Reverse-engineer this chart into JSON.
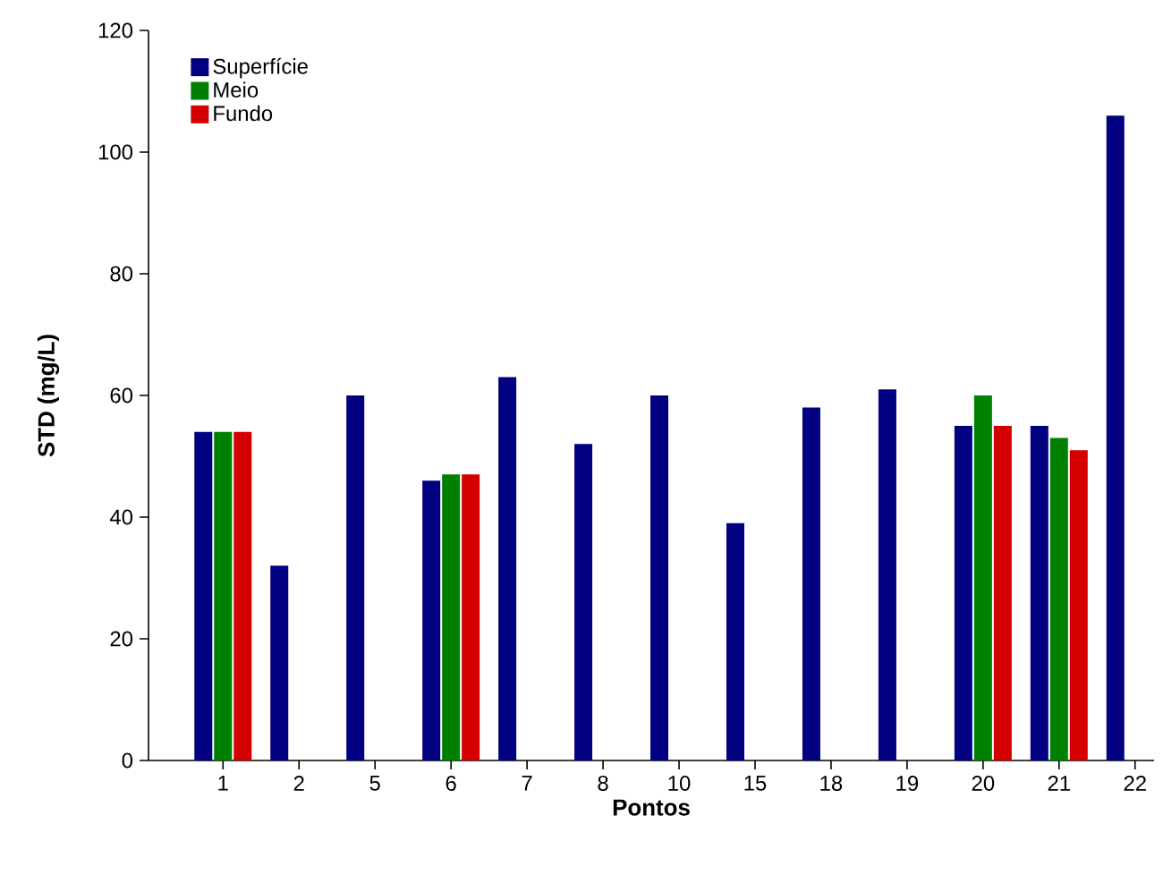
{
  "chart_data": {
    "type": "bar",
    "xlabel": "Pontos",
    "ylabel": "STD (mg/L)",
    "categories": [
      "1",
      "2",
      "5",
      "6",
      "7",
      "8",
      "10",
      "15",
      "18",
      "19",
      "20",
      "21",
      "22"
    ],
    "series": [
      {
        "name": "Superfície",
        "color": "#000080",
        "values": [
          54,
          32,
          60,
          46,
          63,
          52,
          60,
          39,
          58,
          61,
          55,
          55,
          106
        ]
      },
      {
        "name": "Meio",
        "color": "#008000",
        "values": [
          54,
          null,
          null,
          47,
          null,
          null,
          null,
          null,
          null,
          null,
          60,
          53,
          null
        ]
      },
      {
        "name": "Fundo",
        "color": "#d40000",
        "values": [
          54,
          null,
          null,
          47,
          null,
          null,
          null,
          null,
          null,
          null,
          55,
          51,
          null
        ]
      }
    ],
    "ylim": [
      0,
      120
    ],
    "yticks": [
      0,
      20,
      40,
      60,
      80,
      100,
      120
    ],
    "grid": false,
    "legend": "top left"
  }
}
